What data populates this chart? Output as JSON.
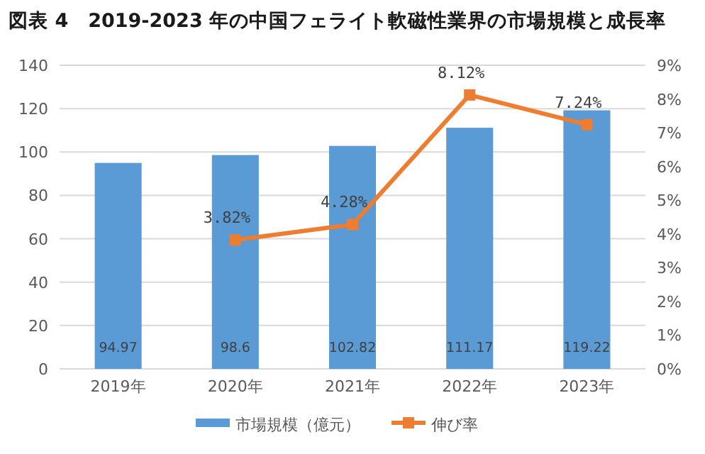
{
  "chart_data": {
    "type": "bar",
    "title": "図表 4　2019-2023 年の中国フェライト軟磁性業界の市場規模と成長率",
    "categories": [
      "2019年",
      "2020年",
      "2021年",
      "2022年",
      "2023年"
    ],
    "series": [
      {
        "name": "市場規模（億元）",
        "color": "#5b9bd5",
        "values": [
          94.97,
          98.6,
          102.82,
          111.17,
          119.22
        ],
        "value_labels": [
          "94.97",
          "98.6",
          "102.82",
          "111.17",
          "119.22"
        ]
      },
      {
        "name": "伸び率",
        "type": "line",
        "axis": "y2",
        "color": "#ed7d31",
        "marker": "square",
        "values": [
          null,
          3.82,
          4.28,
          8.12,
          7.24
        ],
        "value_labels": [
          null,
          "3.82%",
          "4.28%",
          "8.12%",
          "7.24%"
        ]
      }
    ],
    "ylim": [
      0,
      140
    ],
    "yticks": [
      0,
      20,
      40,
      60,
      80,
      100,
      120,
      140
    ],
    "y2lim": [
      0,
      9
    ],
    "y2ticks": [
      {
        "value": 0,
        "label": "0%"
      },
      {
        "value": 1,
        "label": "1%"
      },
      {
        "value": 2,
        "label": "2%"
      },
      {
        "value": 3,
        "label": "3%"
      },
      {
        "value": 4,
        "label": "4%"
      },
      {
        "value": 5,
        "label": "5%"
      },
      {
        "value": 6,
        "label": "6%"
      },
      {
        "value": 7,
        "label": "7%"
      },
      {
        "value": 8,
        "label": "8%"
      },
      {
        "value": 9,
        "label": "9%"
      }
    ],
    "grid": "y",
    "legend": "bottom"
  }
}
